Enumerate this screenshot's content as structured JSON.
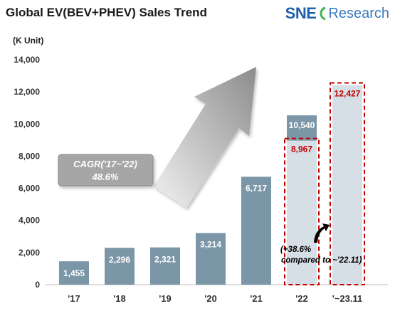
{
  "header": {
    "title": "Global EV(BEV+PHEV)  Sales Trend",
    "logo_sne": "SNE",
    "logo_research": "Research",
    "logo_mark": "swirl-icon"
  },
  "colors": {
    "bar": "#7b96a7",
    "bar_light": "#d6dfe6",
    "highlight": "#c00000",
    "arrow": "#999999",
    "brand": "#1f5fa8"
  },
  "chart_data": {
    "type": "bar",
    "unit_label": "(K Unit)",
    "categories": [
      "'17",
      "'18",
      "'19",
      "'20",
      "'21",
      "'22",
      "'~23.11"
    ],
    "series": [
      {
        "values": [
          1455,
          2296,
          2321,
          3214,
          6717,
          10540,
          null
        ]
      },
      {
        "values": [
          null,
          null,
          null,
          null,
          null,
          8967,
          12427
        ]
      }
    ],
    "data_labels": [
      "1,455",
      "2,296",
      "2,321",
      "3,214",
      "6,717",
      "10,540",
      "8,967",
      "12,427"
    ],
    "ylim": [
      0,
      14000
    ],
    "yticks": [
      0,
      2000,
      4000,
      6000,
      8000,
      10000,
      12000,
      14000
    ],
    "ytick_labels": [
      "0",
      "2,000",
      "4,000",
      "6,000",
      "8,000",
      "10,000",
      "12,000",
      "14,000"
    ],
    "grid": false,
    "annotations": {
      "cagr_line1": "CAGR('17~'22)",
      "cagr_line2": "48.6%",
      "growth_line1": "(+38.6%",
      "growth_line2": "compared to ~'22.11)"
    }
  }
}
